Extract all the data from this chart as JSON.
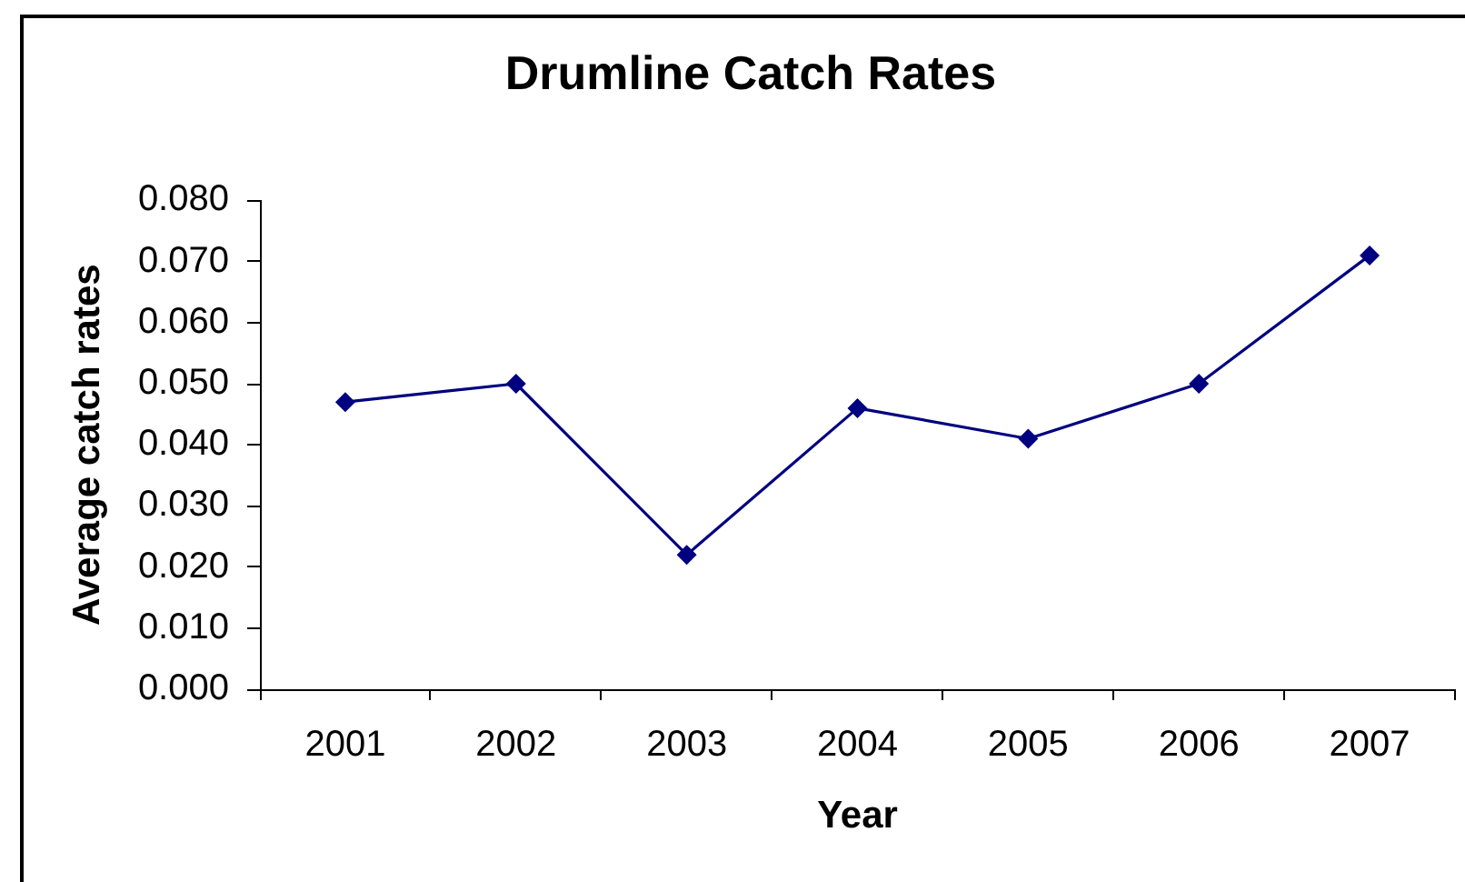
{
  "chart_data": {
    "type": "line",
    "title": "Drumline Catch Rates",
    "xlabel": "Year",
    "ylabel": "Average catch rates",
    "categories": [
      "2001",
      "2002",
      "2003",
      "2004",
      "2005",
      "2006",
      "2007"
    ],
    "values": [
      0.047,
      0.05,
      0.022,
      0.046,
      0.041,
      0.05,
      0.071
    ],
    "color": "#000080",
    "ylim": [
      0,
      0.08
    ],
    "yticks": [
      {
        "value": 0,
        "label": "0.000"
      },
      {
        "value": 0.01,
        "label": "0.010"
      },
      {
        "value": 0.02,
        "label": "0.020"
      },
      {
        "value": 0.03,
        "label": "0.030"
      },
      {
        "value": 0.04,
        "label": "0.040"
      },
      {
        "value": 0.05,
        "label": "0.050"
      },
      {
        "value": 0.06,
        "label": "0.060"
      },
      {
        "value": 0.07,
        "label": "0.070"
      },
      {
        "value": 0.08,
        "label": "0.080"
      }
    ],
    "grid": false,
    "legend": false,
    "marker": "diamond",
    "line_style": "solid"
  }
}
